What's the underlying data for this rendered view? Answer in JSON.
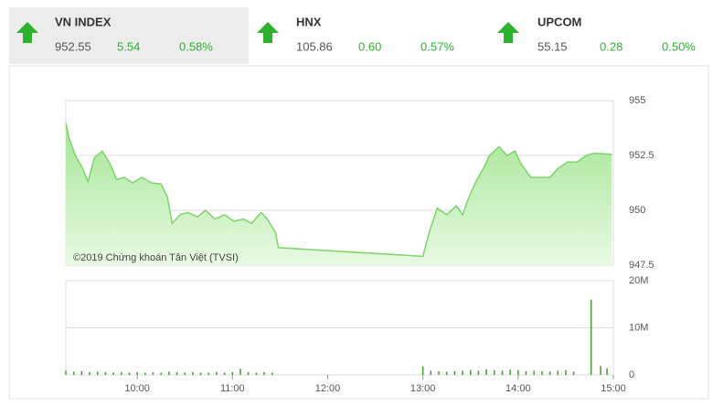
{
  "header": {
    "indices": [
      {
        "name": "VN INDEX",
        "value": "952.55",
        "change": "5.54",
        "pct": "0.58%"
      },
      {
        "name": "HNX",
        "value": "105.86",
        "change": "0.60",
        "pct": "0.57%"
      },
      {
        "name": "UPCOM",
        "value": "55.15",
        "change": "0.28",
        "pct": "0.50%"
      }
    ]
  },
  "chart_data": [
    {
      "type": "area",
      "annotation": "©2019 Chứng khoán Tân Việt (TVSI)",
      "x": [
        "09:15",
        "09:17",
        "09:21",
        "09:25",
        "09:29",
        "09:33",
        "09:38",
        "09:43",
        "09:47",
        "09:52",
        "09:57",
        "10:03",
        "10:09",
        "10:15",
        "10:19",
        "10:22",
        "10:27",
        "10:32",
        "10:38",
        "10:43",
        "10:49",
        "10:55",
        "11:01",
        "11:07",
        "11:12",
        "11:18",
        "11:22",
        "11:27",
        "11:29",
        "13:00",
        "13:04",
        "13:09",
        "13:15",
        "13:21",
        "13:25",
        "13:29",
        "13:33",
        "13:38",
        "13:42",
        "13:48",
        "13:53",
        "13:58",
        "14:02",
        "14:08",
        "14:14",
        "14:20",
        "14:25",
        "14:31",
        "14:37",
        "14:43",
        "14:48",
        "14:59"
      ],
      "series": [
        {
          "color": "#7ed36a",
          "values": [
            953.96,
            953.3,
            952.5,
            952.0,
            951.3,
            952.4,
            952.7,
            952.1,
            951.4,
            951.5,
            951.25,
            951.5,
            951.25,
            951.2,
            950.6,
            949.4,
            949.8,
            949.9,
            949.7,
            950.0,
            949.6,
            949.8,
            949.5,
            949.6,
            949.4,
            949.9,
            949.6,
            949.0,
            948.3,
            947.9,
            949.0,
            950.1,
            949.8,
            950.2,
            949.8,
            950.6,
            951.25,
            951.9,
            952.5,
            952.9,
            952.5,
            952.7,
            952.1,
            951.5,
            951.5,
            951.5,
            951.9,
            952.2,
            952.2,
            952.5,
            952.6,
            952.55
          ]
        }
      ],
      "xlim": [
        "09:15",
        "15:00"
      ],
      "ylim": [
        947.5,
        955
      ],
      "yticks": [
        947.5,
        950,
        952.5,
        955
      ],
      "grid": true
    },
    {
      "type": "bar",
      "color": "#4f9e3f",
      "x": [
        "09:15",
        "09:20",
        "09:25",
        "09:30",
        "09:35",
        "09:40",
        "09:45",
        "09:50",
        "09:55",
        "10:00",
        "10:05",
        "10:10",
        "10:15",
        "10:20",
        "10:25",
        "10:30",
        "10:35",
        "10:40",
        "10:45",
        "10:50",
        "10:55",
        "11:00",
        "11:05",
        "11:10",
        "11:15",
        "11:20",
        "11:25",
        "13:00",
        "13:05",
        "13:10",
        "13:15",
        "13:20",
        "13:25",
        "13:30",
        "13:35",
        "13:40",
        "13:45",
        "13:50",
        "13:55",
        "14:00",
        "14:05",
        "14:10",
        "14:15",
        "14:20",
        "14:25",
        "14:30",
        "14:35",
        "14:46",
        "14:52",
        "14:56"
      ],
      "values": [
        900000,
        700000,
        800000,
        600000,
        700000,
        600000,
        500000,
        600000,
        500000,
        600000,
        500000,
        600000,
        500000,
        700000,
        600000,
        500000,
        600000,
        500000,
        500000,
        600000,
        500000,
        600000,
        1300000,
        600000,
        500000,
        600000,
        500000,
        1800000,
        900000,
        800000,
        700000,
        800000,
        900000,
        1000000,
        900000,
        1200000,
        1000000,
        900000,
        1100000,
        1000000,
        800000,
        900000,
        800000,
        700000,
        900000,
        1000000,
        700000,
        16000000,
        1900000,
        1400000
      ],
      "xlim": [
        "09:15",
        "15:00"
      ],
      "xticks": [
        "10:00",
        "11:00",
        "12:00",
        "13:00",
        "14:00",
        "15:00"
      ],
      "ylim": [
        0,
        20000000
      ],
      "yticks": [
        {
          "value": 0,
          "label": "0"
        },
        {
          "value": 10000000,
          "label": "10M"
        },
        {
          "value": 20000000,
          "label": "20M"
        }
      ],
      "grid": true
    }
  ]
}
